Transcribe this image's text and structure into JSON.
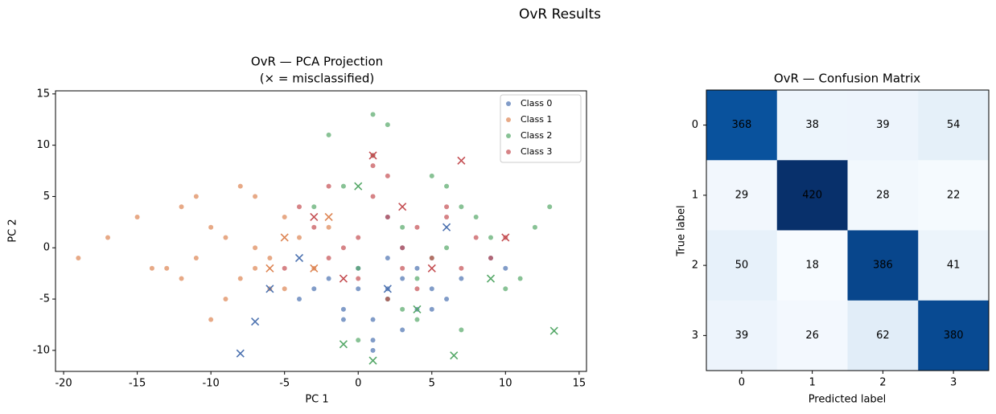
{
  "title": "OvR Results",
  "chart_data": [
    {
      "type": "scatter",
      "title": "OvR — PCA Projection",
      "subtitle": "(× = misclassified)",
      "xlabel": "PC 1",
      "ylabel": "PC 2",
      "xlim": [
        -20.55,
        15.5
      ],
      "ylim": [
        -12.05,
        15.3
      ],
      "xticks": [
        -20,
        -15,
        -10,
        -5,
        0,
        5,
        10,
        15
      ],
      "yticks": [
        -10,
        -5,
        0,
        5,
        10,
        15
      ],
      "legend": "upper right",
      "series": [
        {
          "name": "Class 0",
          "color": "#4c72b0",
          "x": [
            0,
            2,
            3,
            -1,
            4,
            1,
            5,
            -2,
            2,
            6,
            3,
            0,
            -3,
            4,
            1,
            7,
            2,
            -1,
            5,
            3,
            9,
            -4,
            1,
            10,
            2
          ],
          "y": [
            -4,
            -5,
            -3,
            -6,
            -2,
            -7,
            -4,
            -3,
            -1,
            -5,
            -8,
            -2,
            -4,
            -6,
            -9,
            -3,
            -4,
            -7,
            -6,
            0,
            -1,
            -5,
            -10,
            -2,
            3
          ],
          "misclassified": {
            "x": [
              -8,
              -7,
              -4,
              2,
              6,
              -6
            ],
            "y": [
              -10.3,
              -7.2,
              -1,
              -4,
              2,
              -4
            ]
          }
        },
        {
          "name": "Class 1",
          "color": "#dd8452",
          "x": [
            -7,
            -10,
            -13,
            -5,
            -8,
            -12,
            -15,
            -6,
            -9,
            -11,
            -4,
            -7,
            -17,
            -14,
            -10,
            -3,
            -8,
            -6,
            -12,
            -9,
            -19,
            -5,
            -11,
            -2,
            -7
          ],
          "y": [
            0,
            2,
            -2,
            3,
            -3,
            4,
            3,
            -1,
            -5,
            -1,
            1,
            5,
            1,
            -2,
            -7,
            -2,
            6,
            -4,
            -3,
            1,
            -1,
            -4,
            5,
            2,
            -2
          ],
          "misclassified": {
            "x": [
              -5,
              -3,
              -6,
              -2
            ],
            "y": [
              1,
              -2,
              -2,
              3
            ]
          }
        },
        {
          "name": "Class 2",
          "color": "#55a868",
          "x": [
            3,
            5,
            1,
            7,
            -1,
            4,
            6,
            2,
            8,
            10,
            0,
            9,
            3,
            12,
            -2,
            5,
            11,
            2,
            6,
            -3,
            4,
            1,
            7,
            13,
            0
          ],
          "y": [
            2,
            -1,
            9,
            4,
            6,
            -3,
            0,
            12,
            3,
            -4,
            -2,
            1,
            -6,
            2,
            11,
            7,
            -3,
            -5,
            6,
            4,
            -7,
            13,
            -8,
            4,
            -9
          ],
          "misclassified": {
            "x": [
              13.3,
              6.5,
              1,
              -1,
              4,
              9,
              0
            ],
            "y": [
              -8.1,
              -10.5,
              -11,
              -9.4,
              -6,
              -3,
              6
            ]
          }
        },
        {
          "name": "Class 3",
          "color": "#c44e52",
          "x": [
            0,
            2,
            -2,
            4,
            1,
            3,
            -1,
            6,
            5,
            -3,
            2,
            8,
            0,
            7,
            -4,
            3,
            1,
            -2,
            9,
            4,
            -5,
            2,
            6,
            10,
            1
          ],
          "y": [
            1,
            3,
            -1,
            2,
            5,
            -2,
            0,
            4,
            -1,
            2,
            7,
            1,
            -3,
            -2,
            4,
            0,
            9,
            6,
            -1,
            -4,
            -2,
            -5,
            3,
            1,
            8
          ],
          "misclassified": {
            "x": [
              1,
              7,
              3,
              -3,
              5,
              10,
              -1
            ],
            "y": [
              9,
              8.5,
              4,
              3,
              -2,
              1,
              -3
            ]
          }
        }
      ]
    },
    {
      "type": "heatmap",
      "title": "OvR — Confusion Matrix",
      "xlabel": "Predicted label",
      "ylabel": "True label",
      "xcategories": [
        "0",
        "1",
        "2",
        "3"
      ],
      "ycategories": [
        "0",
        "1",
        "2",
        "3"
      ],
      "colormap": "Blues",
      "values": [
        [
          368,
          38,
          39,
          54
        ],
        [
          29,
          420,
          28,
          22
        ],
        [
          50,
          18,
          386,
          41
        ],
        [
          39,
          26,
          62,
          380
        ]
      ]
    }
  ]
}
